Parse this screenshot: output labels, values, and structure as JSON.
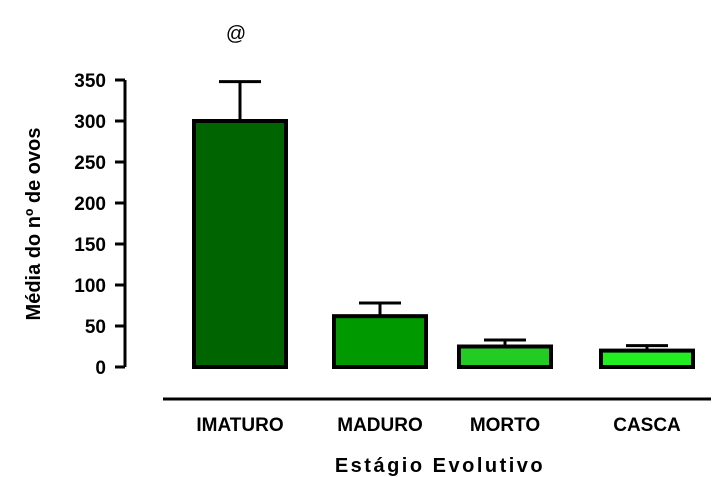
{
  "chart_data": {
    "type": "bar",
    "categories": [
      "IMATURO",
      "MADURO",
      "MORTO",
      "CASCA"
    ],
    "values": [
      300,
      62,
      25,
      20
    ],
    "errors": [
      48,
      16,
      8,
      6
    ],
    "bar_colors": [
      "#006400",
      "#009900",
      "#22cc22",
      "#22ee22"
    ],
    "xlabel": "Estágio Evolutivo",
    "ylabel": "Média do nº de ovos",
    "ylim": [
      0,
      350
    ],
    "yticks": [
      0,
      50,
      100,
      150,
      200,
      250,
      300,
      350
    ],
    "ytick_labels": [
      "0",
      "50",
      "100",
      "150",
      "200",
      "250",
      "300",
      "350"
    ],
    "annotations": [
      {
        "text": "@",
        "category": "IMATURO"
      }
    ],
    "grid": false,
    "legend": "none"
  }
}
